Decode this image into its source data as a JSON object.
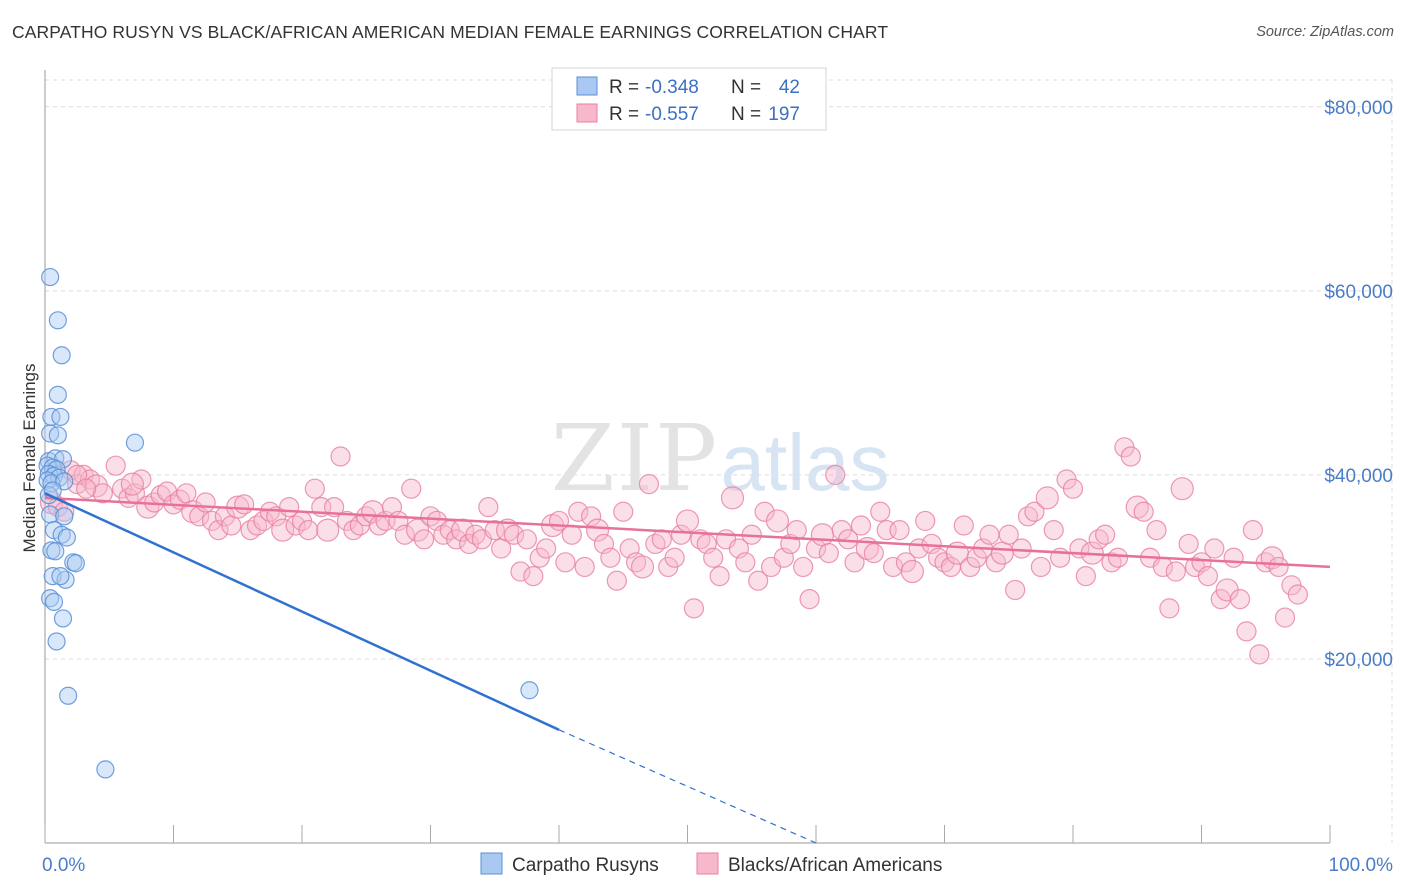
{
  "title": "CARPATHO RUSYN VS BLACK/AFRICAN AMERICAN MEDIAN FEMALE EARNINGS CORRELATION CHART",
  "source": "Source: ZipAtlas.com",
  "watermark": {
    "zip": "ZIP",
    "atlas": "atlas"
  },
  "colors": {
    "blue_fill": "#a9c9f2",
    "blue_stroke": "#5b8fd6",
    "blue_line": "#2f73cf",
    "pink_fill": "#f7b8cb",
    "pink_stroke": "#e9809f",
    "pink_line": "#e8719a",
    "accent_text": "#3d6fc4",
    "grid": "#dcdcdc"
  },
  "legend": {
    "r_label": "R =",
    "n_label": "N =",
    "rows": [
      {
        "r": "-0.348",
        "n": "42"
      },
      {
        "r": "-0.557",
        "n": "197"
      }
    ]
  },
  "bottom_legend": [
    "Carpatho Rusyns",
    "Blacks/African Americans"
  ],
  "chart_data": {
    "type": "scatter",
    "title": "CARPATHO RUSYN VS BLACK/AFRICAN AMERICAN MEDIAN FEMALE EARNINGS CORRELATION CHART",
    "xlabel": "",
    "ylabel": "Median Female Earnings",
    "xlim": [
      0,
      100
    ],
    "ylim": [
      0,
      84000
    ],
    "x_tick_labels": [
      "0.0%",
      "100.0%"
    ],
    "y_ticks": [
      20000,
      40000,
      60000,
      80000
    ],
    "y_tick_labels": [
      "$20,000",
      "$40,000",
      "$60,000",
      "$80,000"
    ],
    "grid": true,
    "legend_position": "top-center",
    "series": [
      {
        "name": "Carpatho Rusyns",
        "r": -0.348,
        "n": 42,
        "trend": {
          "x": [
            0,
            40
          ],
          "y": [
            38000,
            12300
          ],
          "dashed_to": {
            "x": 60,
            "y": 0
          }
        },
        "points": [
          [
            0.4,
            61500
          ],
          [
            1.0,
            56800
          ],
          [
            1.3,
            53000
          ],
          [
            1.0,
            48700
          ],
          [
            0.5,
            46300
          ],
          [
            1.2,
            46300
          ],
          [
            0.4,
            44500
          ],
          [
            1.0,
            44300
          ],
          [
            0.3,
            41500
          ],
          [
            0.8,
            41800
          ],
          [
            1.4,
            41700
          ],
          [
            0.2,
            41000
          ],
          [
            0.6,
            40800
          ],
          [
            0.9,
            40600
          ],
          [
            0.3,
            40100
          ],
          [
            0.7,
            39900
          ],
          [
            1.1,
            39700
          ],
          [
            0.2,
            39400
          ],
          [
            0.5,
            39100
          ],
          [
            1.5,
            39300
          ],
          [
            0.4,
            35700
          ],
          [
            1.5,
            35500
          ],
          [
            0.7,
            34000
          ],
          [
            1.3,
            33500
          ],
          [
            1.7,
            33200
          ],
          [
            0.5,
            31800
          ],
          [
            0.8,
            31700
          ],
          [
            2.2,
            30500
          ],
          [
            2.4,
            30400
          ],
          [
            0.6,
            29000
          ],
          [
            1.6,
            28600
          ],
          [
            1.2,
            29000
          ],
          [
            0.4,
            26600
          ],
          [
            0.7,
            26200
          ],
          [
            1.4,
            24400
          ],
          [
            0.9,
            21900
          ],
          [
            1.8,
            16000
          ],
          [
            4.7,
            8000
          ],
          [
            7.0,
            43500
          ],
          [
            37.7,
            16600
          ],
          [
            0.3,
            37800
          ],
          [
            0.6,
            38300
          ]
        ]
      },
      {
        "name": "Blacks/African Americans",
        "r": -0.557,
        "n": 197,
        "trend": {
          "x": [
            0,
            100
          ],
          "y": [
            37500,
            30000
          ]
        },
        "points": [
          [
            0.5,
            37000
          ],
          [
            1.0,
            36500
          ],
          [
            1.5,
            36000
          ],
          [
            2.0,
            40500
          ],
          [
            2.5,
            39000
          ],
          [
            3.0,
            40000
          ],
          [
            3.5,
            39500
          ],
          [
            4.0,
            38800
          ],
          [
            4.5,
            38000
          ],
          [
            5.5,
            41000
          ],
          [
            6.0,
            38500
          ],
          [
            6.5,
            37500
          ],
          [
            7.0,
            38000
          ],
          [
            7.5,
            39500
          ],
          [
            8.0,
            36500
          ],
          [
            8.5,
            37000
          ],
          [
            9.0,
            37800
          ],
          [
            9.5,
            38200
          ],
          [
            10.0,
            36800
          ],
          [
            10.5,
            37300
          ],
          [
            11.0,
            38000
          ],
          [
            11.5,
            36000
          ],
          [
            12.0,
            35500
          ],
          [
            12.5,
            37000
          ],
          [
            13.0,
            35000
          ],
          [
            13.5,
            34000
          ],
          [
            14.0,
            35500
          ],
          [
            14.5,
            34500
          ],
          [
            15.0,
            36500
          ],
          [
            15.5,
            36800
          ],
          [
            16.0,
            34000
          ],
          [
            16.5,
            34500
          ],
          [
            17.0,
            35000
          ],
          [
            17.5,
            36000
          ],
          [
            18.0,
            35500
          ],
          [
            18.5,
            34000
          ],
          [
            19.0,
            36500
          ],
          [
            19.5,
            34500
          ],
          [
            20.0,
            35000
          ],
          [
            20.5,
            34000
          ],
          [
            21.0,
            38500
          ],
          [
            21.5,
            36500
          ],
          [
            22.0,
            34000
          ],
          [
            22.5,
            36500
          ],
          [
            23.0,
            42000
          ],
          [
            23.5,
            35000
          ],
          [
            24.0,
            34000
          ],
          [
            24.5,
            34500
          ],
          [
            25.0,
            35500
          ],
          [
            25.5,
            36000
          ],
          [
            26.0,
            34500
          ],
          [
            26.5,
            35000
          ],
          [
            27.0,
            36500
          ],
          [
            27.5,
            35000
          ],
          [
            28.0,
            33500
          ],
          [
            28.5,
            38500
          ],
          [
            29.0,
            34000
          ],
          [
            29.5,
            33000
          ],
          [
            30.0,
            35500
          ],
          [
            30.5,
            35000
          ],
          [
            31.0,
            33500
          ],
          [
            31.5,
            34000
          ],
          [
            32.0,
            33000
          ],
          [
            32.5,
            34000
          ],
          [
            33.0,
            32500
          ],
          [
            33.5,
            33500
          ],
          [
            34.0,
            33000
          ],
          [
            34.5,
            36500
          ],
          [
            35.0,
            34000
          ],
          [
            35.5,
            32000
          ],
          [
            36.0,
            34000
          ],
          [
            36.5,
            33500
          ],
          [
            37.0,
            29500
          ],
          [
            37.5,
            33000
          ],
          [
            38.0,
            29000
          ],
          [
            38.5,
            31000
          ],
          [
            39.0,
            32000
          ],
          [
            39.5,
            34500
          ],
          [
            40.0,
            35000
          ],
          [
            40.5,
            30500
          ],
          [
            41.0,
            33500
          ],
          [
            41.5,
            36000
          ],
          [
            42.0,
            30000
          ],
          [
            42.5,
            35500
          ],
          [
            43.0,
            34000
          ],
          [
            43.5,
            32500
          ],
          [
            44.0,
            31000
          ],
          [
            44.5,
            28500
          ],
          [
            45.0,
            36000
          ],
          [
            45.5,
            32000
          ],
          [
            46.0,
            30500
          ],
          [
            46.5,
            30000
          ],
          [
            47.0,
            39000
          ],
          [
            47.5,
            32500
          ],
          [
            48.0,
            33000
          ],
          [
            48.5,
            30000
          ],
          [
            49.0,
            31000
          ],
          [
            49.5,
            33500
          ],
          [
            50.0,
            35000
          ],
          [
            50.5,
            25500
          ],
          [
            51.0,
            33000
          ],
          [
            51.5,
            32500
          ],
          [
            52.0,
            31000
          ],
          [
            52.5,
            29000
          ],
          [
            53.0,
            33000
          ],
          [
            53.5,
            37500
          ],
          [
            54.0,
            32000
          ],
          [
            54.5,
            30500
          ],
          [
            55.0,
            33500
          ],
          [
            55.5,
            28500
          ],
          [
            56.0,
            36000
          ],
          [
            56.5,
            30000
          ],
          [
            57.0,
            35000
          ],
          [
            57.5,
            31000
          ],
          [
            58.0,
            32500
          ],
          [
            58.5,
            34000
          ],
          [
            59.0,
            30000
          ],
          [
            59.5,
            26500
          ],
          [
            60.0,
            32000
          ],
          [
            60.5,
            33500
          ],
          [
            61.0,
            31500
          ],
          [
            61.5,
            40000
          ],
          [
            62.0,
            34000
          ],
          [
            62.5,
            33000
          ],
          [
            63.0,
            30500
          ],
          [
            63.5,
            34500
          ],
          [
            64.0,
            32000
          ],
          [
            64.5,
            31500
          ],
          [
            65.0,
            36000
          ],
          [
            65.5,
            34000
          ],
          [
            66.0,
            30000
          ],
          [
            66.5,
            34000
          ],
          [
            67.0,
            30500
          ],
          [
            67.5,
            29500
          ],
          [
            68.0,
            32000
          ],
          [
            68.5,
            35000
          ],
          [
            69.0,
            32500
          ],
          [
            69.5,
            31000
          ],
          [
            70.0,
            30500
          ],
          [
            70.5,
            30000
          ],
          [
            71.0,
            31500
          ],
          [
            71.5,
            34500
          ],
          [
            72.0,
            30000
          ],
          [
            72.5,
            31000
          ],
          [
            73.0,
            32000
          ],
          [
            73.5,
            33500
          ],
          [
            74.0,
            30500
          ],
          [
            74.5,
            31500
          ],
          [
            75.0,
            33500
          ],
          [
            75.5,
            27500
          ],
          [
            76.0,
            32000
          ],
          [
            76.5,
            35500
          ],
          [
            77.0,
            36000
          ],
          [
            77.5,
            30000
          ],
          [
            78.0,
            37500
          ],
          [
            78.5,
            34000
          ],
          [
            79.0,
            31000
          ],
          [
            79.5,
            39500
          ],
          [
            80.0,
            38500
          ],
          [
            80.5,
            32000
          ],
          [
            81.0,
            29000
          ],
          [
            81.5,
            31500
          ],
          [
            82.0,
            33000
          ],
          [
            82.5,
            33500
          ],
          [
            83.0,
            30500
          ],
          [
            83.5,
            31000
          ],
          [
            84.0,
            43000
          ],
          [
            84.5,
            42000
          ],
          [
            85.0,
            36500
          ],
          [
            85.5,
            36000
          ],
          [
            86.0,
            31000
          ],
          [
            86.5,
            34000
          ],
          [
            87.0,
            30000
          ],
          [
            87.5,
            25500
          ],
          [
            88.0,
            29500
          ],
          [
            88.5,
            38500
          ],
          [
            89.0,
            32500
          ],
          [
            89.5,
            30000
          ],
          [
            90.0,
            30500
          ],
          [
            90.5,
            29000
          ],
          [
            91.0,
            32000
          ],
          [
            91.5,
            26500
          ],
          [
            92.0,
            27500
          ],
          [
            92.5,
            31000
          ],
          [
            93.0,
            26500
          ],
          [
            93.5,
            23000
          ],
          [
            94.0,
            34000
          ],
          [
            94.5,
            20500
          ],
          [
            95.0,
            30500
          ],
          [
            95.5,
            31000
          ],
          [
            96.0,
            30000
          ],
          [
            96.5,
            24500
          ],
          [
            97.0,
            28000
          ],
          [
            97.5,
            27000
          ],
          [
            2.5,
            40000
          ],
          [
            3.2,
            38500
          ],
          [
            6.8,
            39000
          ]
        ]
      }
    ]
  }
}
